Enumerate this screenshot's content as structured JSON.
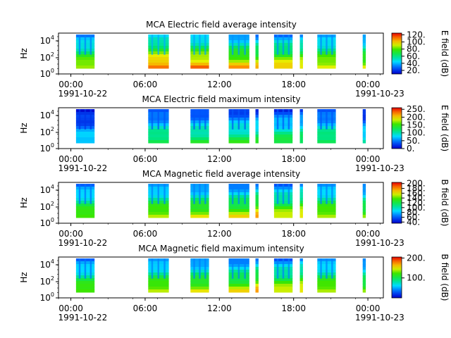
{
  "chart_data": [
    {
      "type": "heatmap",
      "title": "MCA  Electric field average intensity",
      "ylabel": "Hz",
      "y_ticks": [
        "10^4",
        "10^2",
        "10^0"
      ],
      "x_ticks": [
        "00:00",
        "06:00",
        "12:00",
        "18:00",
        "00:00"
      ],
      "x_start_date": "1991-10-22",
      "x_end_date": "1991-10-23",
      "colorbar_label": "E field (dB)",
      "colorbar_ticks": [
        "120.",
        "100.",
        "80.",
        "60.",
        "40.",
        "20."
      ],
      "colorbar_range": [
        10,
        125
      ],
      "colormap": "rainbow",
      "segments": [
        {
          "start": "00:25",
          "end": "01:55",
          "level": 0.55
        },
        {
          "start": "06:15",
          "end": "07:55",
          "level": 0.7
        },
        {
          "start": "09:40",
          "end": "11:10",
          "level": 0.68
        },
        {
          "start": "12:45",
          "end": "14:25",
          "level": 0.62
        },
        {
          "start": "14:55",
          "end": "15:10",
          "level": 0.6
        },
        {
          "start": "16:25",
          "end": "17:55",
          "level": 0.6
        },
        {
          "start": "18:30",
          "end": "18:45",
          "level": 0.6
        },
        {
          "start": "19:55",
          "end": "21:25",
          "level": 0.58
        },
        {
          "start": "23:35",
          "end": "23:50",
          "level": 0.55
        }
      ]
    },
    {
      "type": "heatmap",
      "title": "MCA  Electric field maximum intensity",
      "ylabel": "Hz",
      "y_ticks": [
        "10^4",
        "10^2",
        "10^0"
      ],
      "x_ticks": [
        "00:00",
        "06:00",
        "12:00",
        "18:00",
        "00:00"
      ],
      "x_start_date": "1991-10-22",
      "x_end_date": "1991-10-23",
      "colorbar_label": "E field (dB)",
      "colorbar_ticks": [
        "250.",
        "200.",
        "150.",
        "100.",
        "50.",
        "0."
      ],
      "colorbar_range": [
        0,
        260
      ],
      "colormap": "rainbow",
      "segments": [
        {
          "start": "00:25",
          "end": "01:55",
          "level": 0.25
        },
        {
          "start": "06:15",
          "end": "07:55",
          "level": 0.4
        },
        {
          "start": "09:40",
          "end": "11:10",
          "level": 0.4
        },
        {
          "start": "12:45",
          "end": "14:25",
          "level": 0.4
        },
        {
          "start": "14:55",
          "end": "15:10",
          "level": 0.4
        },
        {
          "start": "16:25",
          "end": "17:55",
          "level": 0.4
        },
        {
          "start": "18:30",
          "end": "18:45",
          "level": 0.4
        },
        {
          "start": "19:55",
          "end": "21:25",
          "level": 0.4
        },
        {
          "start": "23:35",
          "end": "23:50",
          "level": 0.3
        }
      ]
    },
    {
      "type": "heatmap",
      "title": "MCA  Magnetic field average intensity",
      "ylabel": "Hz",
      "y_ticks": [
        "10^4",
        "10^2",
        "10^0"
      ],
      "x_ticks": [
        "00:00",
        "06:00",
        "12:00",
        "18:00",
        "00:00"
      ],
      "x_start_date": "1991-10-22",
      "x_end_date": "1991-10-23",
      "colorbar_label": "B field (dB)",
      "colorbar_ticks": [
        "200.",
        "180.",
        "160.",
        "140.",
        "120.",
        "100.",
        "80.",
        "60.",
        "40."
      ],
      "colorbar_range": [
        35,
        205
      ],
      "colormap": "rainbow",
      "segments": [
        {
          "start": "00:25",
          "end": "01:55",
          "level": 0.5
        },
        {
          "start": "06:15",
          "end": "07:55",
          "level": 0.55
        },
        {
          "start": "09:40",
          "end": "11:10",
          "level": 0.55
        },
        {
          "start": "12:45",
          "end": "14:25",
          "level": 0.55
        },
        {
          "start": "14:55",
          "end": "15:10",
          "level": 0.62
        },
        {
          "start": "16:25",
          "end": "17:55",
          "level": 0.55
        },
        {
          "start": "18:30",
          "end": "18:45",
          "level": 0.6
        },
        {
          "start": "19:55",
          "end": "21:25",
          "level": 0.55
        },
        {
          "start": "23:35",
          "end": "23:50",
          "level": 0.5
        }
      ]
    },
    {
      "type": "heatmap",
      "title": "MCA  Magnetic field maximum intensity",
      "ylabel": "Hz",
      "y_ticks": [
        "10^4",
        "10^2",
        "10^0"
      ],
      "x_ticks": [
        "00:00",
        "06:00",
        "12:00",
        "18:00",
        "00:00"
      ],
      "x_start_date": "1991-10-22",
      "x_end_date": "1991-10-23",
      "colorbar_label": "B field (dB)",
      "colorbar_ticks": [
        "200.",
        "100."
      ],
      "colorbar_range": [
        0,
        205
      ],
      "colormap": "rainbow",
      "segments": [
        {
          "start": "00:25",
          "end": "01:55",
          "level": 0.5
        },
        {
          "start": "06:15",
          "end": "07:55",
          "level": 0.55
        },
        {
          "start": "09:40",
          "end": "11:10",
          "level": 0.55
        },
        {
          "start": "12:45",
          "end": "14:25",
          "level": 0.55
        },
        {
          "start": "14:55",
          "end": "15:10",
          "level": 0.62
        },
        {
          "start": "16:25",
          "end": "17:55",
          "level": 0.55
        },
        {
          "start": "18:30",
          "end": "18:45",
          "level": 0.6
        },
        {
          "start": "19:55",
          "end": "21:25",
          "level": 0.55
        },
        {
          "start": "23:35",
          "end": "23:50",
          "level": 0.5
        }
      ]
    }
  ]
}
